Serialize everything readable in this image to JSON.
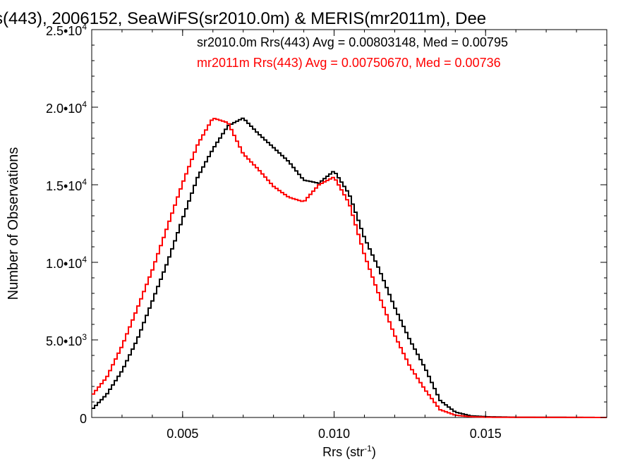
{
  "chart_data": {
    "type": "line",
    "title": "s(443), 2006152, SeaWiFS(sr2010.0m) & MERIS(mr2011m), Dee",
    "xlabel": "Rrs (str",
    "xlabel_sup": "-1",
    "xlabel_close": ")",
    "ylabel": "Number of Observations",
    "xlim": [
      0.002,
      0.019
    ],
    "ylim": [
      0,
      25000
    ],
    "grid": false,
    "x_ticks": [
      {
        "value": 0.005,
        "label": "0.005"
      },
      {
        "value": 0.01,
        "label": "0.010"
      },
      {
        "value": 0.015,
        "label": "0.015"
      }
    ],
    "y_ticks": [
      {
        "value": 0,
        "label": "0",
        "sup": ""
      },
      {
        "value": 5000,
        "label": "5.0•10",
        "sup": "3"
      },
      {
        "value": 10000,
        "label": "1.0•10",
        "sup": "4"
      },
      {
        "value": 15000,
        "label": "1.5•10",
        "sup": "4"
      },
      {
        "value": 20000,
        "label": "2.0•10",
        "sup": "4"
      },
      {
        "value": 25000,
        "label": "2.5•10",
        "sup": "4"
      }
    ],
    "annotations": [
      {
        "text": "sr2010.0m Rrs(443) Avg = 0.00803148, Med = 0.00795",
        "color": "#000000"
      },
      {
        "text": "mr2011m Rrs(443) Avg = 0.00750670, Med = 0.00736",
        "color": "#ff0000"
      }
    ],
    "series": [
      {
        "name": "sr2010.0m",
        "color": "#000000",
        "x": [
          0.002,
          0.0025,
          0.003,
          0.0035,
          0.004,
          0.0045,
          0.005,
          0.0055,
          0.006,
          0.0065,
          0.007,
          0.0075,
          0.008,
          0.0085,
          0.009,
          0.0095,
          0.01,
          0.0105,
          0.011,
          0.0115,
          0.012,
          0.0125,
          0.013,
          0.0135,
          0.014,
          0.0145,
          0.015,
          0.0155,
          0.016,
          0.019
        ],
        "values": [
          500,
          1500,
          3000,
          5000,
          7500,
          10000,
          12800,
          15500,
          17300,
          18800,
          19300,
          18300,
          17400,
          16500,
          15300,
          15100,
          15900,
          14400,
          11600,
          9500,
          7100,
          5000,
          3200,
          1100,
          350,
          110,
          50,
          30,
          15,
          0
        ]
      },
      {
        "name": "mr2011m",
        "color": "#ff0000",
        "x": [
          0.002,
          0.0025,
          0.003,
          0.0035,
          0.004,
          0.0045,
          0.005,
          0.0055,
          0.006,
          0.0065,
          0.007,
          0.0075,
          0.008,
          0.0085,
          0.009,
          0.0095,
          0.01,
          0.0105,
          0.011,
          0.0115,
          0.012,
          0.0125,
          0.013,
          0.0135,
          0.014,
          0.0145,
          0.015,
          0.0155,
          0.019
        ],
        "values": [
          1400,
          2600,
          4600,
          7000,
          9500,
          12300,
          15100,
          17600,
          19300,
          19000,
          17000,
          16000,
          14900,
          14200,
          13900,
          15000,
          15500,
          13800,
          10500,
          7800,
          5300,
          3300,
          1800,
          500,
          150,
          50,
          20,
          10,
          0
        ]
      }
    ]
  }
}
